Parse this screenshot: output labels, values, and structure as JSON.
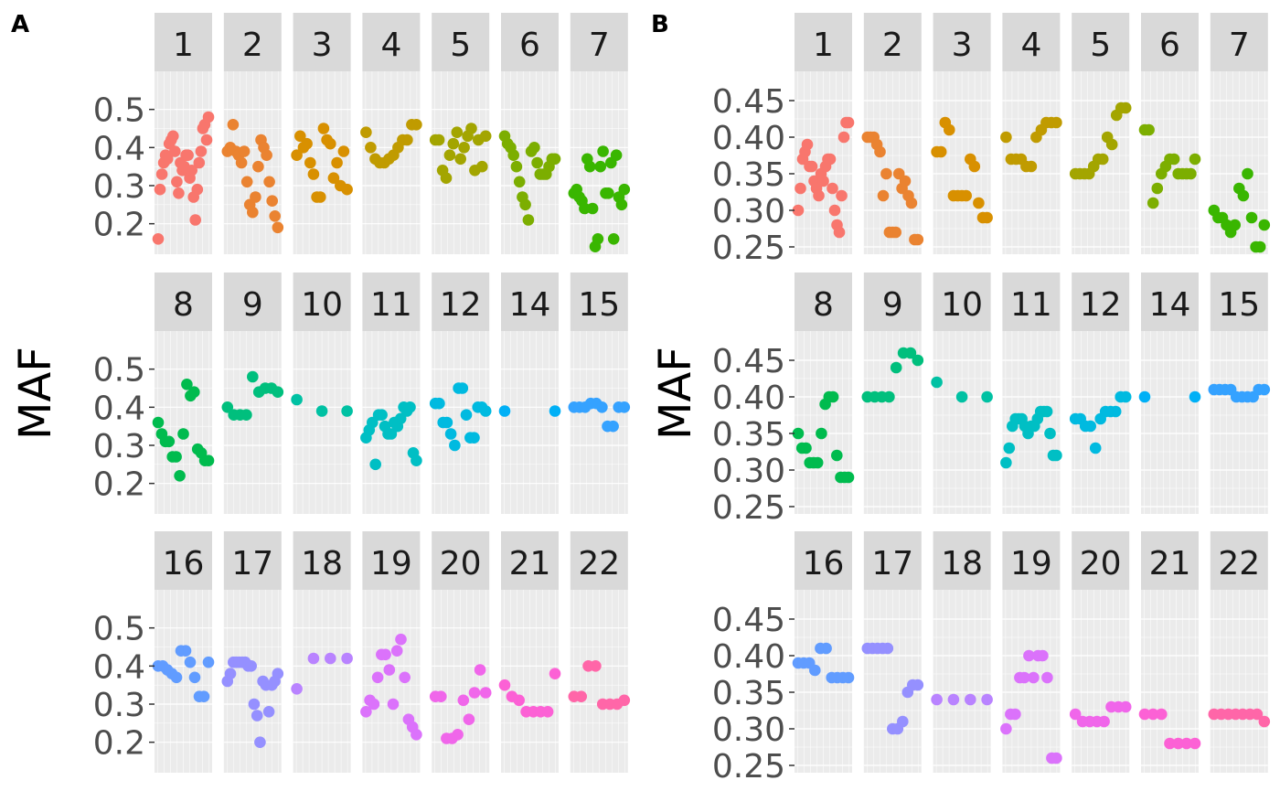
{
  "chart_data": [
    {
      "type": "scatter",
      "panel_label": "A",
      "ylabel": "MAF",
      "ylim": [
        0.12,
        0.6
      ],
      "yticks": [
        0.2,
        0.3,
        0.4,
        0.5
      ],
      "ytick_labels": [
        "0.2",
        "0.3",
        "0.4",
        "0.5"
      ],
      "grid": true,
      "facets": [
        {
          "label": "1",
          "color": "#F8766D",
          "y": [
            0.16,
            0.29,
            0.33,
            0.36,
            0.38,
            0.37,
            0.41,
            0.42,
            0.43,
            0.39,
            0.31,
            0.28,
            0.36,
            0.34,
            0.35,
            0.38,
            0.38,
            0.32,
            0.34,
            0.27,
            0.21,
            0.29,
            0.36,
            0.39,
            0.45,
            0.46,
            0.42,
            0.48
          ]
        },
        {
          "label": "2",
          "color": "#EA8331",
          "y": [
            0.39,
            0.4,
            0.46,
            0.39,
            0.38,
            0.36,
            0.39,
            0.31,
            0.25,
            0.23,
            0.27,
            0.35,
            0.42,
            0.4,
            0.38,
            0.31,
            0.26,
            0.22,
            0.19
          ]
        },
        {
          "label": "3",
          "color": "#D89000",
          "y": [
            0.38,
            0.43,
            0.4,
            0.41,
            0.36,
            0.33,
            0.27,
            0.27,
            0.45,
            0.42,
            0.41,
            0.32,
            0.36,
            0.3,
            0.39,
            0.29
          ]
        },
        {
          "label": "4",
          "color": "#C09B00",
          "y": [
            0.44,
            0.4,
            0.37,
            0.36,
            0.36,
            0.37,
            0.38,
            0.4,
            0.42,
            0.42,
            0.46,
            0.46
          ]
        },
        {
          "label": "5",
          "color": "#A3A500",
          "y": [
            0.42,
            0.42,
            0.34,
            0.32,
            0.38,
            0.41,
            0.44,
            0.37,
            0.4,
            0.43,
            0.45,
            0.34,
            0.42,
            0.35,
            0.43
          ]
        },
        {
          "label": "6",
          "color": "#7CAE00",
          "y": [
            0.43,
            0.41,
            0.4,
            0.38,
            0.35,
            0.31,
            0.27,
            0.25,
            0.21,
            0.39,
            0.4,
            0.36,
            0.33,
            0.33,
            0.33,
            0.35,
            0.37,
            0.37
          ]
        },
        {
          "label": "7",
          "color": "#39B600",
          "y": [
            0.28,
            0.29,
            0.27,
            0.26,
            0.24,
            0.37,
            0.35,
            0.24,
            0.14,
            0.16,
            0.35,
            0.39,
            0.28,
            0.28,
            0.36,
            0.16,
            0.38,
            0.27,
            0.25,
            0.29
          ]
        },
        {
          "label": "8",
          "color": "#00BB4E",
          "y": [
            0.36,
            0.33,
            0.31,
            0.31,
            0.27,
            0.27,
            0.22,
            0.33,
            0.46,
            0.43,
            0.44,
            0.29,
            0.28,
            0.26,
            0.26
          ]
        },
        {
          "label": "9",
          "color": "#00BF7D",
          "y": [
            0.4,
            0.38,
            0.38,
            0.38,
            0.48,
            0.44,
            0.45,
            0.45,
            0.44
          ]
        },
        {
          "label": "10",
          "color": "#00C1A3",
          "y": [
            0.42,
            0.39,
            0.39
          ]
        },
        {
          "label": "11",
          "color": "#00BFC4",
          "y": [
            0.32,
            0.34,
            0.36,
            0.25,
            0.38,
            0.38,
            0.35,
            0.33,
            0.33,
            0.36,
            0.35,
            0.37,
            0.4,
            0.39,
            0.4,
            0.28,
            0.26
          ]
        },
        {
          "label": "12",
          "color": "#00BAE0",
          "y": [
            0.41,
            0.41,
            0.36,
            0.36,
            0.33,
            0.3,
            0.45,
            0.45,
            0.38,
            0.32,
            0.32,
            0.4,
            0.4,
            0.39
          ]
        },
        {
          "label": "14",
          "color": "#00B0F6",
          "y": [
            0.39,
            0.39
          ]
        },
        {
          "label": "15",
          "color": "#35A2FF",
          "y": [
            0.4,
            0.4,
            0.4,
            0.41,
            0.41,
            0.4,
            0.35,
            0.35,
            0.4,
            0.4
          ]
        },
        {
          "label": "16",
          "color": "#619CFF",
          "y": [
            0.4,
            0.4,
            0.39,
            0.38,
            0.37,
            0.44,
            0.44,
            0.41,
            0.37,
            0.32,
            0.32,
            0.41
          ]
        },
        {
          "label": "17",
          "color": "#9590FF",
          "y": [
            0.36,
            0.38,
            0.41,
            0.41,
            0.41,
            0.41,
            0.41,
            0.4,
            0.4,
            0.3,
            0.27,
            0.2,
            0.36,
            0.35,
            0.28,
            0.35,
            0.36,
            0.38
          ]
        },
        {
          "label": "18",
          "color": "#B983FF",
          "y": [
            0.34,
            0.42,
            0.42,
            0.42
          ]
        },
        {
          "label": "19",
          "color": "#DB72FB",
          "y": [
            0.28,
            0.31,
            0.3,
            0.37,
            0.43,
            0.43,
            0.39,
            0.3,
            0.44,
            0.47,
            0.37,
            0.26,
            0.24,
            0.22
          ]
        },
        {
          "label": "20",
          "color": "#F066EA",
          "y": [
            0.32,
            0.32,
            0.21,
            0.21,
            0.22,
            0.31,
            0.26,
            0.33,
            0.39,
            0.33
          ]
        },
        {
          "label": "21",
          "color": "#FC61D5",
          "y": [
            0.35,
            0.32,
            0.31,
            0.28,
            0.28,
            0.28,
            0.28,
            0.38
          ]
        },
        {
          "label": "22",
          "color": "#FF66A8",
          "y": [
            0.32,
            0.32,
            0.4,
            0.4,
            0.3,
            0.3,
            0.3,
            0.31
          ]
        }
      ]
    },
    {
      "type": "scatter",
      "panel_label": "B",
      "ylabel": "MAF",
      "ylim": [
        0.24,
        0.49
      ],
      "yticks": [
        0.25,
        0.3,
        0.35,
        0.4,
        0.45
      ],
      "ytick_labels": [
        "0.25",
        "0.30",
        "0.35",
        "0.40",
        "0.45"
      ],
      "grid": true,
      "facets": [
        {
          "label": "1",
          "color": "#F8766D",
          "y": [
            0.3,
            0.33,
            0.37,
            0.38,
            0.39,
            0.36,
            0.36,
            0.34,
            0.33,
            0.32,
            0.35,
            0.34,
            0.36,
            0.37,
            0.37,
            0.33,
            0.3,
            0.28,
            0.27,
            0.32,
            0.4,
            0.42,
            0.42
          ]
        },
        {
          "label": "2",
          "color": "#EA8331",
          "y": [
            0.4,
            0.4,
            0.4,
            0.39,
            0.38,
            0.32,
            0.35,
            0.27,
            0.27,
            0.27,
            0.35,
            0.33,
            0.34,
            0.32,
            0.31,
            0.26,
            0.26
          ]
        },
        {
          "label": "3",
          "color": "#D89000",
          "y": [
            0.38,
            0.38,
            0.42,
            0.41,
            0.32,
            0.32,
            0.32,
            0.32,
            0.37,
            0.36,
            0.31,
            0.29,
            0.29
          ]
        },
        {
          "label": "4",
          "color": "#C09B00",
          "y": [
            0.4,
            0.37,
            0.37,
            0.37,
            0.36,
            0.36,
            0.4,
            0.41,
            0.42,
            0.42,
            0.42
          ]
        },
        {
          "label": "5",
          "color": "#A3A500",
          "y": [
            0.35,
            0.35,
            0.35,
            0.35,
            0.36,
            0.37,
            0.37,
            0.4,
            0.39,
            0.43,
            0.44,
            0.44
          ]
        },
        {
          "label": "6",
          "color": "#7CAE00",
          "y": [
            0.41,
            0.41,
            0.31,
            0.33,
            0.35,
            0.36,
            0.37,
            0.37,
            0.35,
            0.35,
            0.35,
            0.35,
            0.37
          ]
        },
        {
          "label": "7",
          "color": "#39B600",
          "y": [
            0.3,
            0.29,
            0.29,
            0.28,
            0.27,
            0.28,
            0.33,
            0.32,
            0.35,
            0.29,
            0.25,
            0.25,
            0.28
          ]
        },
        {
          "label": "8",
          "color": "#00BB4E",
          "y": [
            0.35,
            0.33,
            0.33,
            0.31,
            0.31,
            0.31,
            0.35,
            0.39,
            0.4,
            0.4,
            0.32,
            0.29,
            0.29,
            0.29
          ]
        },
        {
          "label": "9",
          "color": "#00BF7D",
          "y": [
            0.4,
            0.4,
            0.4,
            0.4,
            0.44,
            0.46,
            0.46,
            0.45
          ]
        },
        {
          "label": "10",
          "color": "#00C1A3",
          "y": [
            0.42,
            0.4,
            0.4
          ]
        },
        {
          "label": "11",
          "color": "#00BFC4",
          "y": [
            0.31,
            0.33,
            0.36,
            0.37,
            0.37,
            0.37,
            0.36,
            0.35,
            0.36,
            0.36,
            0.37,
            0.38,
            0.38,
            0.38,
            0.35,
            0.32,
            0.32
          ]
        },
        {
          "label": "12",
          "color": "#00BAE0",
          "y": [
            0.37,
            0.37,
            0.36,
            0.36,
            0.33,
            0.37,
            0.38,
            0.38,
            0.38,
            0.4,
            0.4
          ]
        },
        {
          "label": "14",
          "color": "#00B0F6",
          "y": [
            0.4,
            0.4
          ]
        },
        {
          "label": "15",
          "color": "#35A2FF",
          "y": [
            0.41,
            0.41,
            0.41,
            0.41,
            0.4,
            0.4,
            0.4,
            0.4,
            0.41,
            0.41
          ]
        },
        {
          "label": "16",
          "color": "#619CFF",
          "y": [
            0.39,
            0.39,
            0.39,
            0.38,
            0.41,
            0.41,
            0.37,
            0.37,
            0.37,
            0.37
          ]
        },
        {
          "label": "17",
          "color": "#9590FF",
          "y": [
            0.41,
            0.41,
            0.41,
            0.41,
            0.41,
            0.3,
            0.3,
            0.31,
            0.35,
            0.36,
            0.36
          ]
        },
        {
          "label": "18",
          "color": "#B983FF",
          "y": [
            0.34,
            0.34,
            0.34,
            0.34
          ]
        },
        {
          "label": "19",
          "color": "#DB72FB",
          "y": [
            0.3,
            0.32,
            0.32,
            0.37,
            0.37,
            0.4,
            0.37,
            0.4,
            0.4,
            0.37,
            0.26,
            0.26
          ]
        },
        {
          "label": "20",
          "color": "#F066EA",
          "y": [
            0.32,
            0.31,
            0.31,
            0.31,
            0.31,
            0.33,
            0.33,
            0.33
          ]
        },
        {
          "label": "21",
          "color": "#FC61D5",
          "y": [
            0.32,
            0.32,
            0.32,
            0.28,
            0.28,
            0.28,
            0.28
          ]
        },
        {
          "label": "22",
          "color": "#FF66A8",
          "y": [
            0.32,
            0.32,
            0.32,
            0.32,
            0.32,
            0.32,
            0.32,
            0.31
          ]
        }
      ]
    }
  ]
}
